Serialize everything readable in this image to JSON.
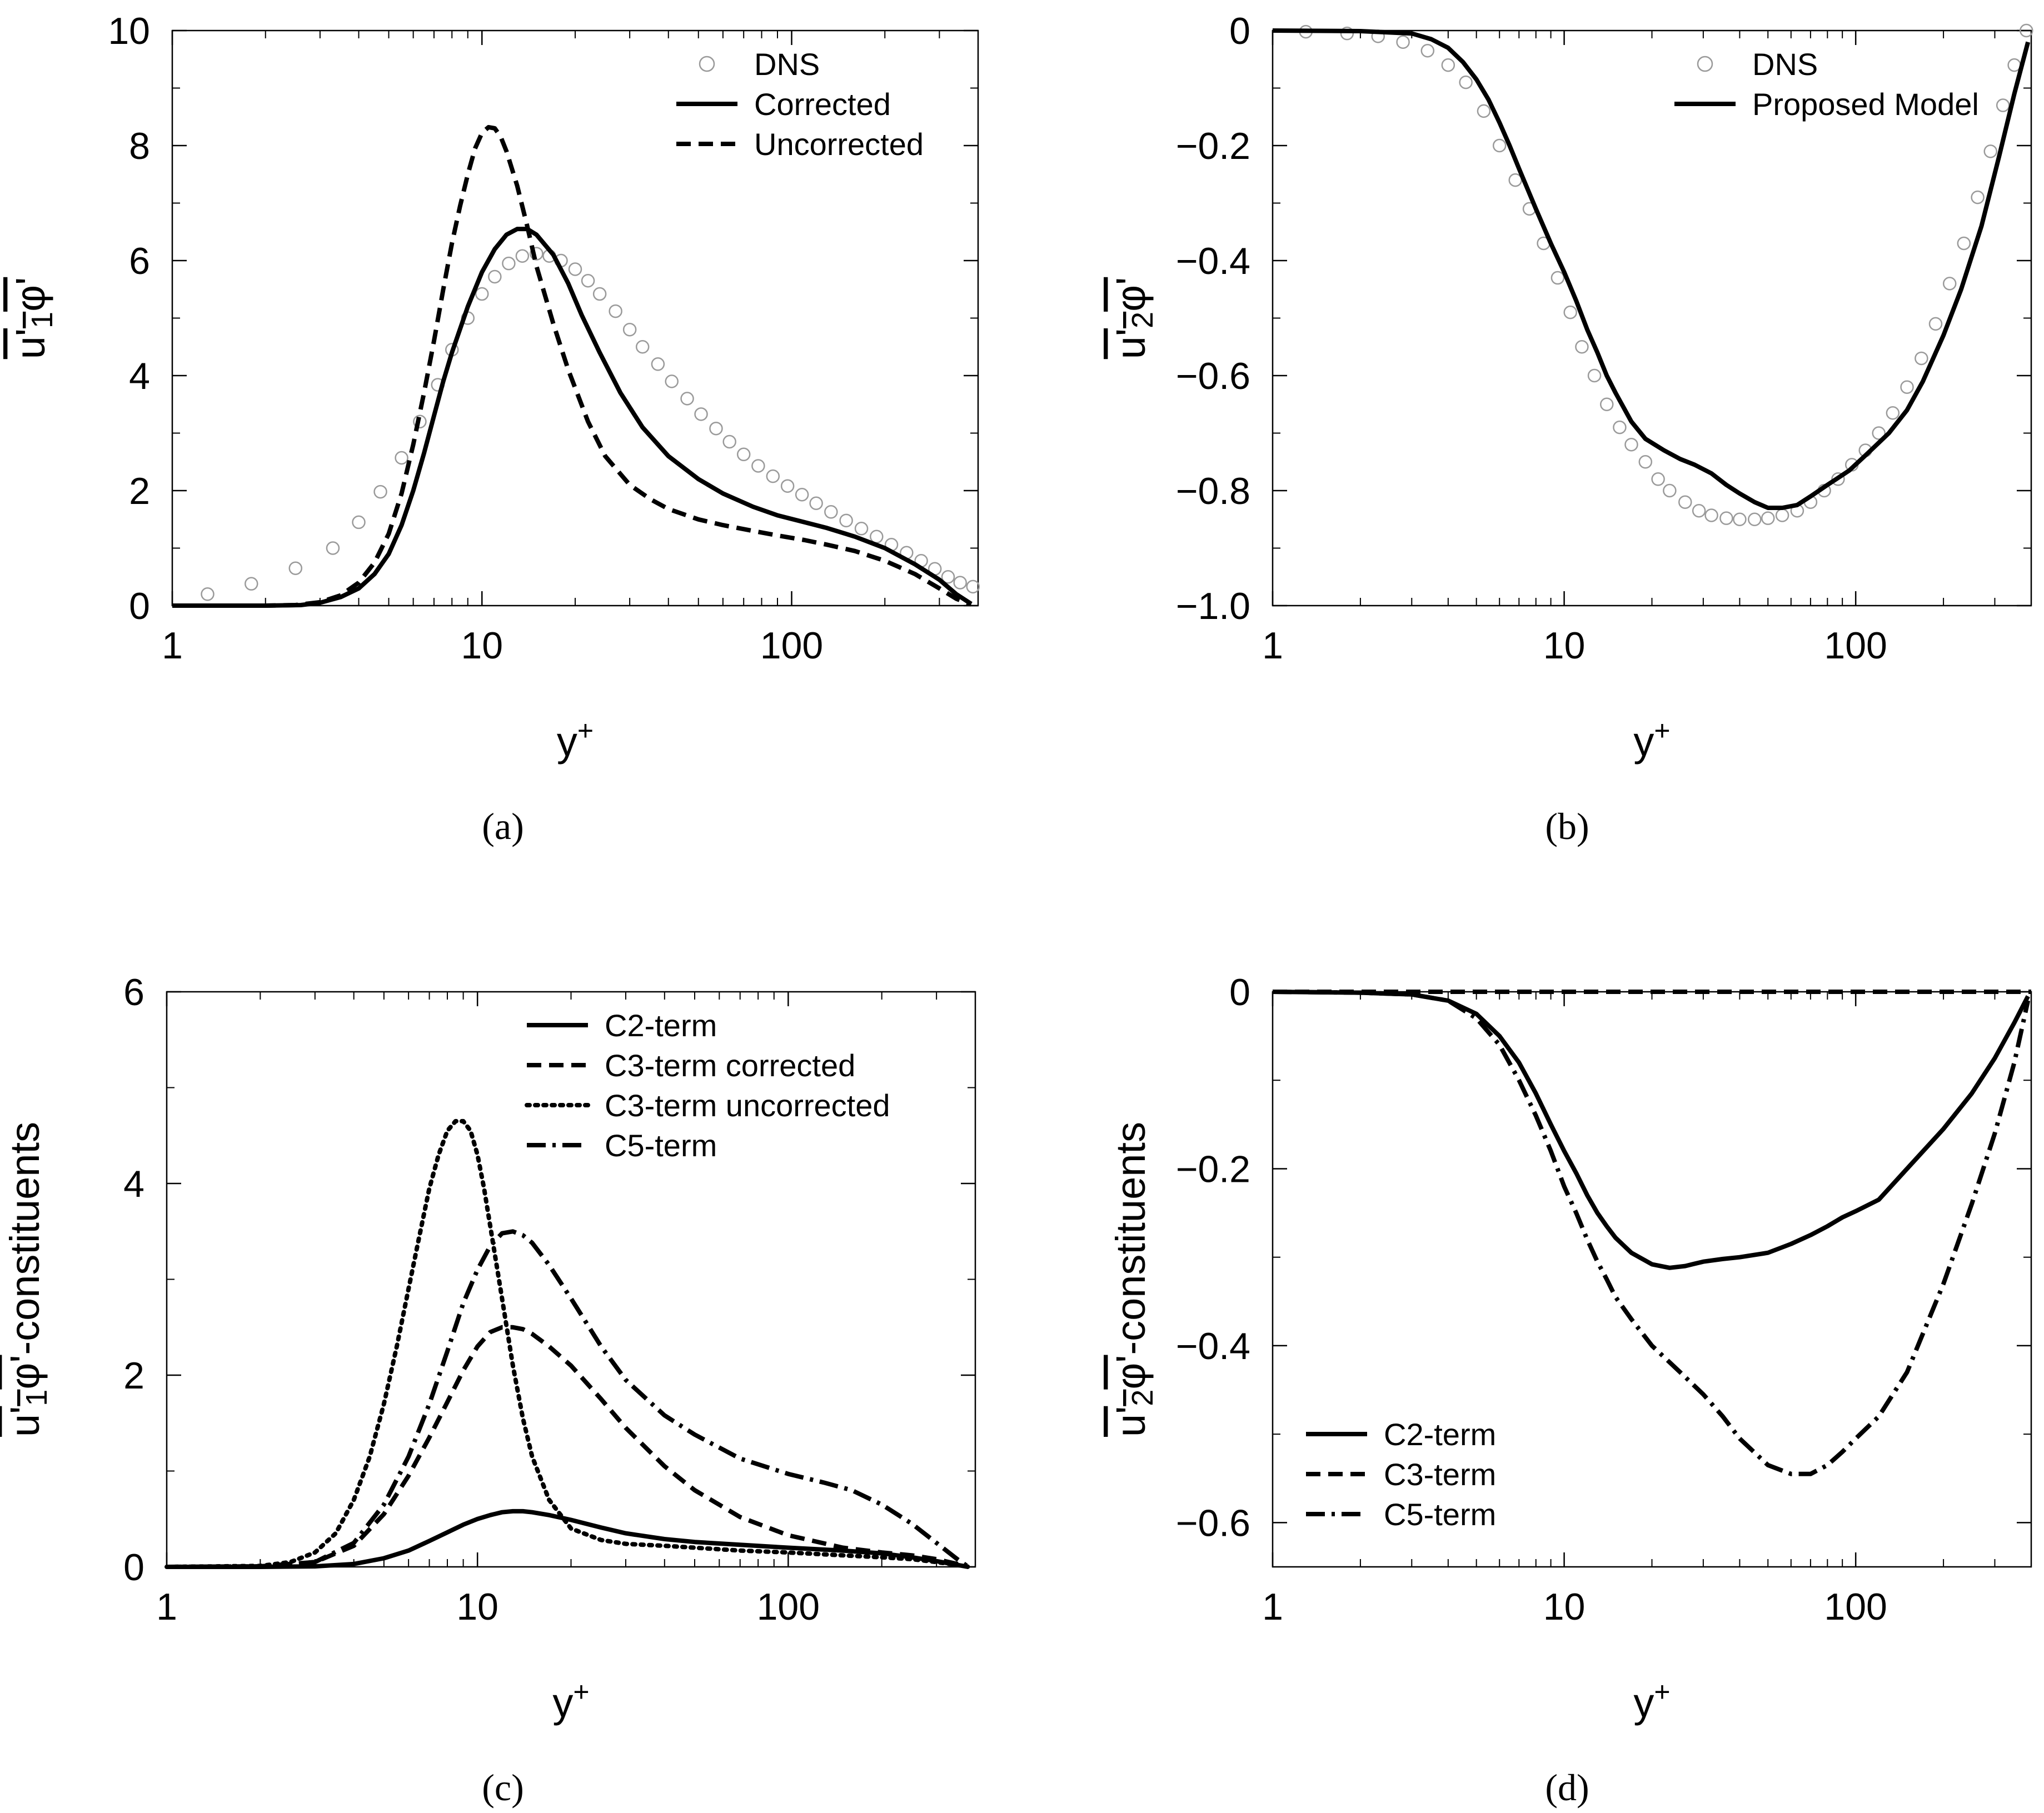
{
  "chart_data": [
    {
      "panel": "(a)",
      "type": "line",
      "xscale": "log",
      "xlim": [
        1,
        400
      ],
      "ylim": [
        0,
        10
      ],
      "xlabel": "y+",
      "ylabel": "u'1φ'",
      "xticks": [
        1,
        10,
        100
      ],
      "xtick_labels": [
        "1",
        "10",
        "100"
      ],
      "yticks": [
        0,
        2,
        4,
        6,
        8,
        10
      ],
      "ytick_labels": [
        "0",
        "2",
        "4",
        "6",
        "8",
        "10"
      ],
      "legend_position": "top-right",
      "series": [
        {
          "name": "DNS",
          "style": "circle",
          "x": [
            1.3,
            1.8,
            2.5,
            3.3,
            4.0,
            4.7,
            5.5,
            6.3,
            7.2,
            8.0,
            9.0,
            10.0,
            11.0,
            12.2,
            13.5,
            15.0,
            16.5,
            18.0,
            20.0,
            22.0,
            24.0,
            27.0,
            30.0,
            33.0,
            37.0,
            41.0,
            46.0,
            51.0,
            57.0,
            63.0,
            70.0,
            78.0,
            87.0,
            97.0,
            108.0,
            120.0,
            134.0,
            150.0,
            168.0,
            188.0,
            210.0,
            235.0,
            262.0,
            290.0,
            320.0,
            350.0,
            385.0
          ],
          "y": [
            0.2,
            0.38,
            0.65,
            1.0,
            1.45,
            1.98,
            2.57,
            3.2,
            3.84,
            4.45,
            5.0,
            5.42,
            5.72,
            5.95,
            6.08,
            6.12,
            6.08,
            6.0,
            5.85,
            5.65,
            5.42,
            5.12,
            4.8,
            4.5,
            4.2,
            3.9,
            3.6,
            3.33,
            3.08,
            2.85,
            2.63,
            2.43,
            2.25,
            2.08,
            1.93,
            1.78,
            1.63,
            1.48,
            1.34,
            1.2,
            1.06,
            0.92,
            0.78,
            0.64,
            0.5,
            0.4,
            0.33
          ]
        },
        {
          "name": "Corrected",
          "style": "solid",
          "x": [
            1,
            2,
            2.6,
            3.0,
            3.5,
            4.0,
            4.5,
            5.0,
            5.5,
            6.0,
            6.5,
            7.0,
            7.5,
            8.0,
            9.0,
            10.0,
            11.0,
            12.0,
            13.0,
            14.0,
            15.0,
            17.0,
            19.0,
            21.0,
            24.0,
            28.0,
            33.0,
            40.0,
            50.0,
            60.0,
            75.0,
            90.0,
            110.0,
            130.0,
            160.0,
            200.0,
            250.0,
            300.0,
            340.0,
            380.0
          ],
          "y": [
            0,
            0,
            0.01,
            0.05,
            0.15,
            0.3,
            0.55,
            0.9,
            1.4,
            2.0,
            2.65,
            3.3,
            3.9,
            4.4,
            5.2,
            5.8,
            6.2,
            6.45,
            6.55,
            6.55,
            6.45,
            6.1,
            5.6,
            5.05,
            4.4,
            3.7,
            3.1,
            2.6,
            2.2,
            1.95,
            1.72,
            1.57,
            1.45,
            1.35,
            1.2,
            1.0,
            0.72,
            0.45,
            0.2,
            0.03
          ]
        },
        {
          "name": "Uncorrected",
          "style": "dashed",
          "x": [
            1,
            2,
            2.5,
            3.0,
            3.5,
            4.0,
            4.5,
            5.0,
            5.5,
            6.0,
            6.5,
            7.0,
            7.5,
            8.0,
            8.5,
            9.0,
            9.5,
            10.0,
            10.5,
            11.0,
            11.5,
            12.0,
            13.0,
            14.0,
            15.0,
            17.0,
            19.0,
            22.0,
            25.0,
            30.0,
            35.0,
            40.0,
            50.0,
            60.0,
            75.0,
            90.0,
            110.0,
            130.0,
            160.0,
            200.0,
            250.0,
            300.0,
            340.0,
            380.0
          ],
          "y": [
            0,
            0,
            0.01,
            0.06,
            0.18,
            0.4,
            0.75,
            1.25,
            1.95,
            2.8,
            3.7,
            4.6,
            5.5,
            6.3,
            6.95,
            7.5,
            7.95,
            8.22,
            8.32,
            8.3,
            8.15,
            7.9,
            7.3,
            6.6,
            5.9,
            4.9,
            4.1,
            3.2,
            2.6,
            2.1,
            1.85,
            1.68,
            1.5,
            1.4,
            1.3,
            1.22,
            1.14,
            1.06,
            0.95,
            0.78,
            0.55,
            0.3,
            0.12,
            0.02
          ]
        }
      ]
    },
    {
      "panel": "(b)",
      "type": "line",
      "xscale": "log",
      "xlim": [
        1,
        400
      ],
      "ylim": [
        -1.0,
        0
      ],
      "xlabel": "y+",
      "ylabel": "u'2φ'",
      "xticks": [
        1,
        10,
        100
      ],
      "xtick_labels": [
        "1",
        "10",
        "100"
      ],
      "yticks": [
        0,
        -0.2,
        -0.4,
        -0.6,
        -0.8,
        -1.0
      ],
      "ytick_labels": [
        "0",
        "−0.2",
        "−0.4",
        "−0.6",
        "−0.8",
        "−1.0"
      ],
      "legend_position": "top-right",
      "series": [
        {
          "name": "DNS",
          "style": "circle",
          "x": [
            1.3,
            1.8,
            2.3,
            2.8,
            3.4,
            4.0,
            4.6,
            5.3,
            6.0,
            6.8,
            7.6,
            8.5,
            9.5,
            10.5,
            11.5,
            12.7,
            14.0,
            15.5,
            17.0,
            19.0,
            21.0,
            23.0,
            26.0,
            29.0,
            32.0,
            36.0,
            40.0,
            45.0,
            50.0,
            56.0,
            63.0,
            70.0,
            78.0,
            87.0,
            97.0,
            108.0,
            120.0,
            134.0,
            150.0,
            168.0,
            188.0,
            210.0,
            235.0,
            262.0,
            290.0,
            320.0,
            350.0,
            385.0
          ],
          "y": [
            -0.002,
            -0.005,
            -0.01,
            -0.02,
            -0.035,
            -0.06,
            -0.09,
            -0.14,
            -0.2,
            -0.26,
            -0.31,
            -0.37,
            -0.43,
            -0.49,
            -0.55,
            -0.6,
            -0.65,
            -0.69,
            -0.72,
            -0.75,
            -0.78,
            -0.8,
            -0.82,
            -0.835,
            -0.843,
            -0.848,
            -0.85,
            -0.85,
            -0.848,
            -0.843,
            -0.835,
            -0.82,
            -0.8,
            -0.78,
            -0.755,
            -0.73,
            -0.7,
            -0.665,
            -0.62,
            -0.57,
            -0.51,
            -0.44,
            -0.37,
            -0.29,
            -0.21,
            -0.13,
            -0.06,
            0.0
          ]
        },
        {
          "name": "Proposed Model",
          "style": "solid",
          "x": [
            1,
            2,
            3.0,
            3.5,
            4.0,
            4.5,
            5.0,
            5.5,
            6.0,
            6.5,
            7.0,
            8.0,
            9.0,
            10.0,
            11.0,
            12.0,
            13.0,
            14.0,
            15.0,
            17.0,
            19.0,
            22.0,
            25.0,
            28.0,
            32.0,
            36.0,
            40.0,
            45.0,
            50.0,
            56.0,
            63.0,
            70.0,
            80.0,
            95.0,
            110.0,
            130.0,
            150.0,
            170.0,
            200.0,
            230.0,
            270.0,
            310.0,
            350.0,
            390.0
          ],
          "y": [
            0,
            -0.001,
            -0.005,
            -0.015,
            -0.03,
            -0.055,
            -0.085,
            -0.12,
            -0.16,
            -0.2,
            -0.24,
            -0.31,
            -0.37,
            -0.42,
            -0.47,
            -0.52,
            -0.56,
            -0.6,
            -0.63,
            -0.68,
            -0.71,
            -0.73,
            -0.745,
            -0.755,
            -0.77,
            -0.79,
            -0.805,
            -0.82,
            -0.83,
            -0.83,
            -0.825,
            -0.81,
            -0.79,
            -0.765,
            -0.735,
            -0.7,
            -0.66,
            -0.61,
            -0.53,
            -0.45,
            -0.34,
            -0.22,
            -0.11,
            -0.02
          ]
        }
      ]
    },
    {
      "panel": "(c)",
      "type": "line",
      "xscale": "log",
      "xlim": [
        1,
        400
      ],
      "ylim": [
        0,
        6
      ],
      "xlabel": "y+",
      "ylabel": "u'1φ'-constituents",
      "xticks": [
        1,
        10,
        100
      ],
      "xtick_labels": [
        "1",
        "10",
        "100"
      ],
      "yticks": [
        0,
        2,
        4,
        6
      ],
      "ytick_labels": [
        "0",
        "2",
        "4",
        "6"
      ],
      "legend_position": "top-right",
      "series": [
        {
          "name": "C2-term",
          "style": "solid",
          "x": [
            1,
            2,
            3,
            4,
            5,
            6,
            7,
            8,
            9,
            10,
            11,
            12,
            13,
            14,
            15,
            17,
            20,
            25,
            30,
            40,
            50,
            70,
            100,
            150,
            200,
            250,
            300,
            350,
            380
          ],
          "y": [
            0,
            0,
            0.005,
            0.03,
            0.09,
            0.17,
            0.27,
            0.36,
            0.44,
            0.5,
            0.54,
            0.57,
            0.58,
            0.58,
            0.57,
            0.54,
            0.49,
            0.41,
            0.35,
            0.29,
            0.26,
            0.23,
            0.2,
            0.17,
            0.14,
            0.1,
            0.06,
            0.02,
            0.0
          ]
        },
        {
          "name": "C3-term corrected",
          "style": "dashed",
          "x": [
            1,
            2,
            3,
            4,
            5,
            6,
            7,
            8,
            9,
            10,
            11,
            12,
            13,
            14,
            15,
            17,
            20,
            25,
            30,
            40,
            50,
            70,
            100,
            150,
            200,
            250,
            300,
            350,
            380
          ],
          "y": [
            0,
            0.005,
            0.05,
            0.22,
            0.55,
            0.95,
            1.35,
            1.72,
            2.05,
            2.3,
            2.45,
            2.5,
            2.5,
            2.48,
            2.43,
            2.3,
            2.1,
            1.75,
            1.45,
            1.05,
            0.8,
            0.52,
            0.33,
            0.2,
            0.15,
            0.12,
            0.08,
            0.03,
            0.0
          ]
        },
        {
          "name": "C3-term uncorrected",
          "style": "dotted",
          "x": [
            1,
            2,
            2.5,
            3.0,
            3.5,
            4.0,
            4.5,
            5.0,
            5.5,
            6.0,
            6.5,
            7.0,
            7.5,
            8.0,
            8.5,
            9.0,
            9.5,
            10.0,
            10.5,
            11.0,
            12.0,
            13.0,
            14.0,
            15.0,
            17.0,
            20.0,
            25.0,
            30.0,
            40.0,
            50.0,
            70.0,
            100.0,
            150.0,
            200.0,
            250.0,
            300.0,
            350.0,
            380.0
          ],
          "y": [
            0,
            0.01,
            0.05,
            0.15,
            0.35,
            0.7,
            1.15,
            1.7,
            2.3,
            2.9,
            3.45,
            3.95,
            4.3,
            4.55,
            4.65,
            4.65,
            4.55,
            4.3,
            3.95,
            3.55,
            2.8,
            2.1,
            1.55,
            1.15,
            0.7,
            0.4,
            0.28,
            0.24,
            0.22,
            0.2,
            0.17,
            0.15,
            0.12,
            0.1,
            0.08,
            0.05,
            0.02,
            0.0
          ]
        },
        {
          "name": "C5-term",
          "style": "dashdot",
          "x": [
            1,
            2,
            3,
            4,
            5,
            6,
            7,
            8,
            9,
            10,
            11,
            12,
            13,
            14,
            15,
            17,
            20,
            25,
            30,
            40,
            50,
            70,
            100,
            130,
            160,
            200,
            250,
            300,
            350,
            380
          ],
          "y": [
            0,
            0.005,
            0.05,
            0.25,
            0.65,
            1.15,
            1.7,
            2.25,
            2.75,
            3.1,
            3.35,
            3.48,
            3.5,
            3.46,
            3.38,
            3.15,
            2.8,
            2.3,
            1.95,
            1.58,
            1.38,
            1.13,
            0.97,
            0.88,
            0.8,
            0.65,
            0.45,
            0.25,
            0.08,
            0.0
          ]
        }
      ]
    },
    {
      "panel": "(d)",
      "type": "line",
      "xscale": "log",
      "xlim": [
        1,
        400
      ],
      "ylim": [
        -0.65,
        0
      ],
      "xlabel": "y+",
      "ylabel": "u'2φ'-constituents",
      "xticks": [
        1,
        10,
        100
      ],
      "xtick_labels": [
        "1",
        "10",
        "100"
      ],
      "yticks": [
        0,
        -0.2,
        -0.4,
        -0.6
      ],
      "ytick_labels": [
        "0",
        "−0.2",
        "−0.4",
        "−0.6"
      ],
      "legend_position": "bottom-left",
      "series": [
        {
          "name": "C2-term",
          "style": "solid",
          "x": [
            1,
            2,
            3,
            4,
            5,
            6,
            7,
            8,
            9,
            10,
            11,
            12,
            13,
            14,
            15,
            17,
            20,
            23,
            26,
            30,
            35,
            40,
            50,
            60,
            70,
            80,
            90,
            100,
            120,
            150,
            200,
            250,
            300,
            350,
            390
          ],
          "y": [
            0,
            -0.001,
            -0.003,
            -0.01,
            -0.025,
            -0.05,
            -0.08,
            -0.115,
            -0.15,
            -0.18,
            -0.205,
            -0.23,
            -0.25,
            -0.265,
            -0.278,
            -0.295,
            -0.308,
            -0.312,
            -0.31,
            -0.305,
            -0.302,
            -0.3,
            -0.295,
            -0.285,
            -0.275,
            -0.265,
            -0.255,
            -0.248,
            -0.235,
            -0.2,
            -0.155,
            -0.115,
            -0.075,
            -0.035,
            -0.005
          ]
        },
        {
          "name": "C3-term",
          "style": "dashed",
          "x": [
            1,
            10,
            100,
            400
          ],
          "y": [
            0,
            0,
            0,
            0
          ]
        },
        {
          "name": "C5-term",
          "style": "dashdot",
          "x": [
            1,
            2,
            3,
            4,
            5,
            6,
            7,
            8,
            9,
            10,
            11,
            12,
            13,
            14,
            15,
            17,
            20,
            25,
            30,
            35,
            40,
            50,
            60,
            70,
            80,
            90,
            100,
            120,
            150,
            200,
            250,
            300,
            350,
            390
          ],
          "y": [
            0,
            -0.001,
            -0.003,
            -0.01,
            -0.03,
            -0.06,
            -0.1,
            -0.14,
            -0.18,
            -0.22,
            -0.25,
            -0.28,
            -0.305,
            -0.325,
            -0.345,
            -0.37,
            -0.4,
            -0.43,
            -0.455,
            -0.48,
            -0.505,
            -0.535,
            -0.545,
            -0.545,
            -0.535,
            -0.52,
            -0.505,
            -0.48,
            -0.43,
            -0.33,
            -0.24,
            -0.16,
            -0.08,
            -0.01
          ]
        }
      ]
    }
  ],
  "captions": [
    "(a)",
    "(b)",
    "(c)",
    "(d)"
  ]
}
